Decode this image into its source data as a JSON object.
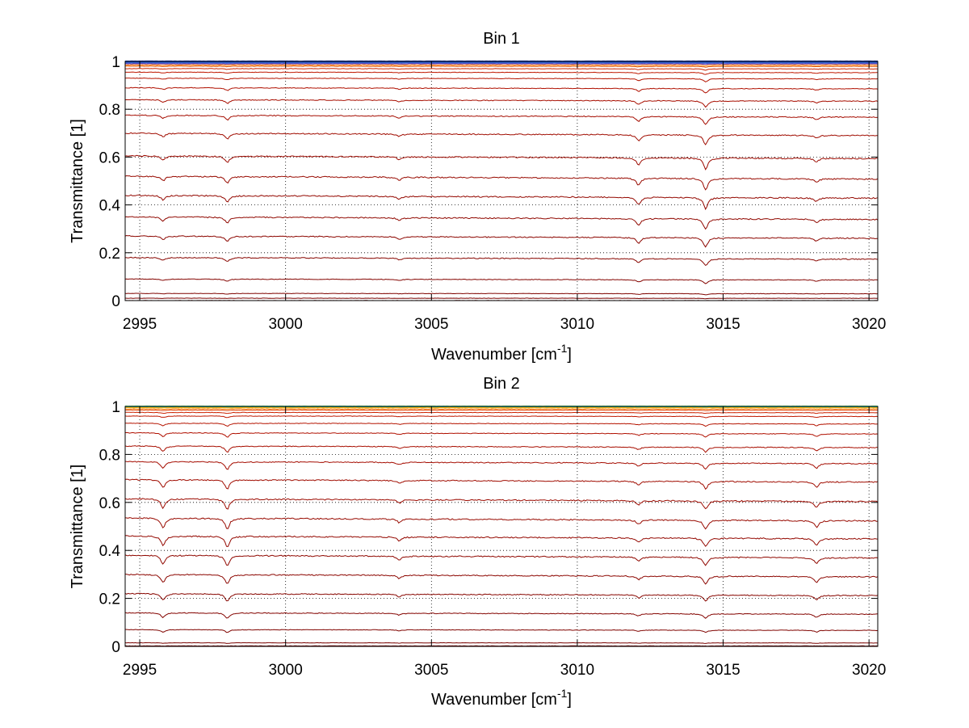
{
  "chart_data": [
    {
      "type": "line",
      "title": "Bin 1",
      "xlabel": "Wavenumber [cm",
      "xlabel_sup": "-1",
      "xlabel_end": "]",
      "ylabel": "Transmittance [1]",
      "xlim": [
        2994.5,
        3020.3
      ],
      "ylim": [
        0,
        1
      ],
      "xticks": [
        "2995",
        "3000",
        "3005",
        "3010",
        "3015",
        "3020"
      ],
      "yticks": [
        "0",
        "0.2",
        "0.4",
        "0.6",
        "0.8",
        "1"
      ],
      "grid": true,
      "absorption_lines": [
        {
          "x": 2995.8,
          "depth": 0.6
        },
        {
          "x": 2998.0,
          "depth": 0.9
        },
        {
          "x": 3003.9,
          "depth": 0.4
        },
        {
          "x": 3012.1,
          "depth": 1.0
        },
        {
          "x": 3014.4,
          "depth": 1.6
        },
        {
          "x": 3018.2,
          "depth": 0.5
        }
      ],
      "series_baselines": [
        1.0,
        0.995,
        0.99,
        0.985,
        0.98,
        0.97,
        0.955,
        0.93,
        0.89,
        0.84,
        0.775,
        0.7,
        0.605,
        0.52,
        0.44,
        0.35,
        0.27,
        0.18,
        0.09,
        0.03,
        0.01,
        0.0
      ],
      "series_colors": [
        "#1f3fbf",
        "#2f5fcf",
        "#6a2f9f",
        "#ff7f00",
        "#e05000",
        "#cc2200",
        "#c01800",
        "#b51400",
        "#b01000",
        "#a80e00",
        "#a50c00",
        "#a00c00",
        "#9c0a00",
        "#980a00",
        "#940800",
        "#900800",
        "#8c0600",
        "#880600",
        "#840400",
        "#800400",
        "#7a0200",
        "#700000"
      ]
    },
    {
      "type": "line",
      "title": "Bin 2",
      "xlabel": "Wavenumber [cm",
      "xlabel_sup": "-1",
      "xlabel_end": "]",
      "ylabel": "Transmittance [1]",
      "xlim": [
        2994.5,
        3020.3
      ],
      "ylim": [
        0,
        1
      ],
      "xticks": [
        "2995",
        "3000",
        "3005",
        "3010",
        "3015",
        "3020"
      ],
      "yticks": [
        "0",
        "0.2",
        "0.4",
        "0.6",
        "0.8",
        "1"
      ],
      "grid": true,
      "absorption_lines": [
        {
          "x": 2995.8,
          "depth": 1.3
        },
        {
          "x": 2998.0,
          "depth": 1.5
        },
        {
          "x": 3003.9,
          "depth": 0.5
        },
        {
          "x": 3012.1,
          "depth": 0.6
        },
        {
          "x": 3014.4,
          "depth": 1.2
        },
        {
          "x": 3018.2,
          "depth": 0.9
        }
      ],
      "series_baselines": [
        1.0,
        0.998,
        0.995,
        0.99,
        0.985,
        0.975,
        0.96,
        0.93,
        0.89,
        0.835,
        0.77,
        0.695,
        0.615,
        0.535,
        0.46,
        0.38,
        0.3,
        0.22,
        0.14,
        0.07,
        0.015,
        0.002,
        0.0
      ],
      "series_colors": [
        "#7fdc7f",
        "#2fbfbf",
        "#ffaf00",
        "#ff7f00",
        "#e04000",
        "#cc2200",
        "#c01800",
        "#b51400",
        "#b01000",
        "#a80e00",
        "#a50c00",
        "#a00c00",
        "#9c0a00",
        "#980a00",
        "#940800",
        "#900800",
        "#8c0600",
        "#880600",
        "#840400",
        "#800400",
        "#7a0200",
        "#740000",
        "#700000"
      ]
    }
  ]
}
